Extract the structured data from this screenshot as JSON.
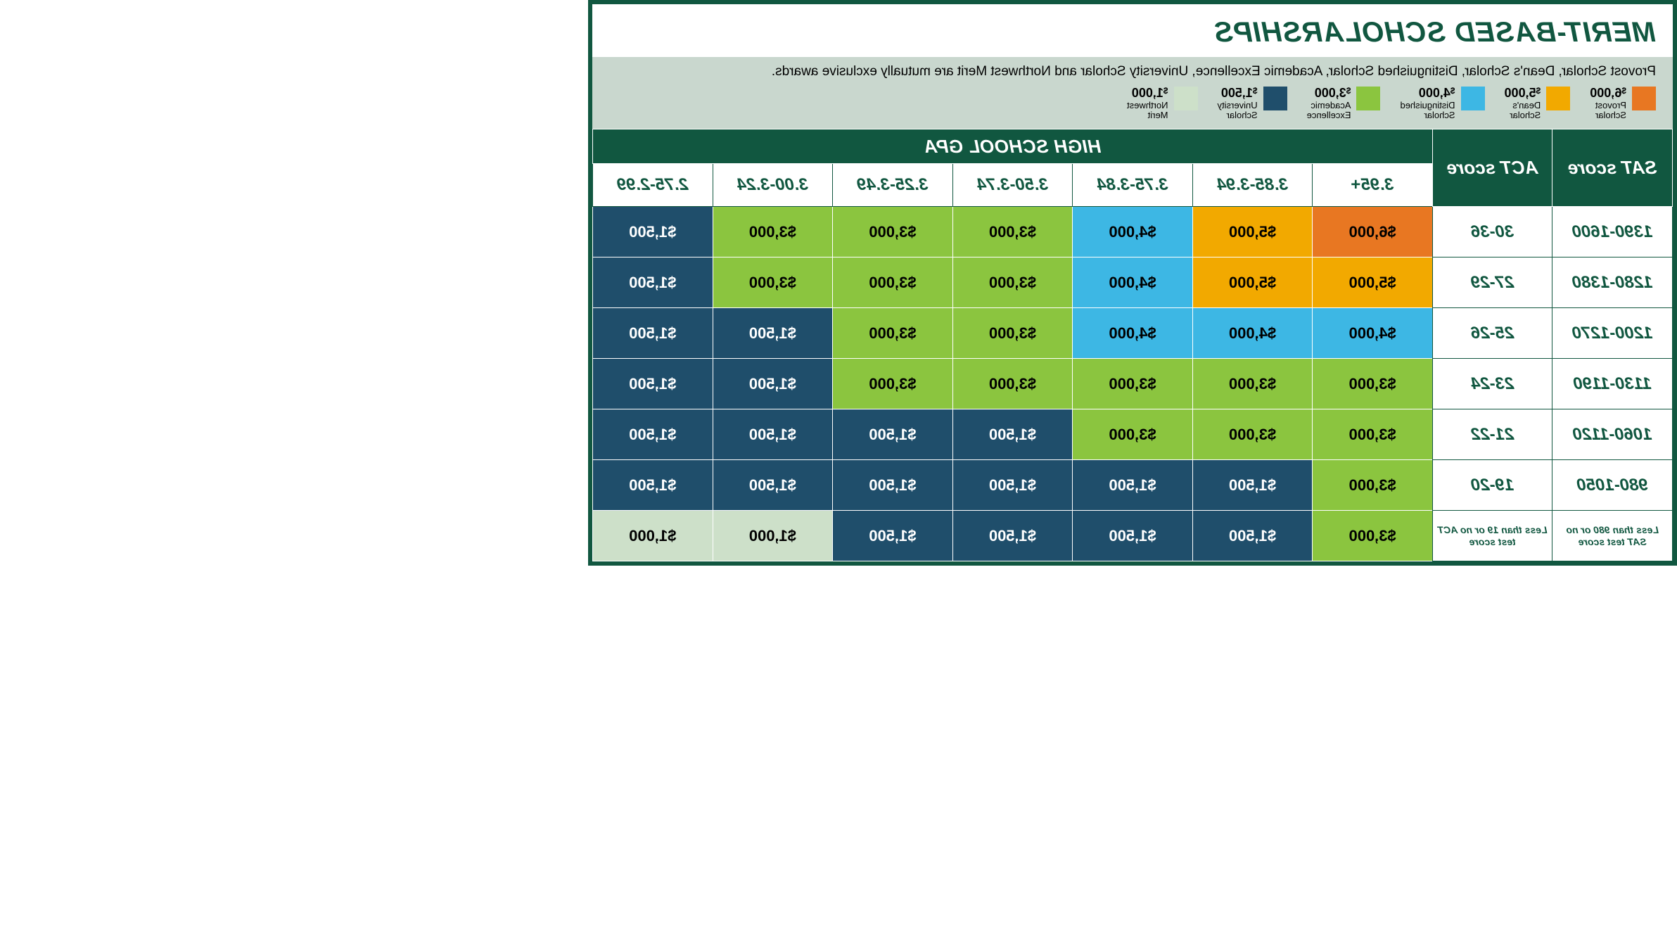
{
  "title": "MERIT-BASED SCHOLARSHIPS",
  "legend_note": "Provost Scholar, Dean's Scholar, Distinguished Scholar, Academic Excellence, University Scholar and Northwest Merit are mutually exclusive awards.",
  "colors": {
    "provost": "#e87722",
    "deans": "#f2a900",
    "distinguished": "#3db7e4",
    "academic": "#8bc53f",
    "university": "#1f4e6b",
    "northwest": "#cde0c9",
    "header_dark": "#115740",
    "white": "#ffffff",
    "text_dark_on_light": "#000000",
    "text_light_on_dark": "#ffffff"
  },
  "legend": [
    {
      "amount": "6,000",
      "name1": "Provost",
      "name2": "Scholar",
      "color_key": "provost"
    },
    {
      "amount": "5,000",
      "name1": "Dean's",
      "name2": "Scholar",
      "color_key": "deans"
    },
    {
      "amount": "4,000",
      "name1": "Distinguished",
      "name2": "Scholar",
      "color_key": "distinguished"
    },
    {
      "amount": "3,000",
      "name1": "Academic",
      "name2": "Excellence",
      "color_key": "academic"
    },
    {
      "amount": "1,500",
      "name1": "University",
      "name2": "Scholar",
      "color_key": "university"
    },
    {
      "amount": "1,000",
      "name1": "Northwest",
      "name2": "Merit",
      "color_key": "northwest"
    }
  ],
  "headers": {
    "sat": "SAT score",
    "act": "ACT score",
    "gpa_title": "HIGH SCHOOL GPA",
    "gpa_cols": [
      "3.95+",
      "3.85-3.94",
      "3.75-3.84",
      "3.50-3.74",
      "3.25-3.49",
      "3.00-3.24",
      "2.75-2.99"
    ]
  },
  "rows": [
    {
      "sat": "1390-1600",
      "act": "30-36",
      "small": false,
      "cells": [
        {
          "value": "$6,000",
          "color_key": "provost",
          "text": "dark"
        },
        {
          "value": "$5,000",
          "color_key": "deans",
          "text": "dark"
        },
        {
          "value": "$4,000",
          "color_key": "distinguished",
          "text": "dark"
        },
        {
          "value": "$3,000",
          "color_key": "academic",
          "text": "dark"
        },
        {
          "value": "$3,000",
          "color_key": "academic",
          "text": "dark"
        },
        {
          "value": "$3,000",
          "color_key": "academic",
          "text": "dark"
        },
        {
          "value": "$1,500",
          "color_key": "university",
          "text": "light"
        }
      ]
    },
    {
      "sat": "1280-1380",
      "act": "27-29",
      "small": false,
      "cells": [
        {
          "value": "$5,000",
          "color_key": "deans",
          "text": "dark"
        },
        {
          "value": "$5,000",
          "color_key": "deans",
          "text": "dark"
        },
        {
          "value": "$4,000",
          "color_key": "distinguished",
          "text": "dark"
        },
        {
          "value": "$3,000",
          "color_key": "academic",
          "text": "dark"
        },
        {
          "value": "$3,000",
          "color_key": "academic",
          "text": "dark"
        },
        {
          "value": "$3,000",
          "color_key": "academic",
          "text": "dark"
        },
        {
          "value": "$1,500",
          "color_key": "university",
          "text": "light"
        }
      ]
    },
    {
      "sat": "1200-1270",
      "act": "25-26",
      "small": false,
      "cells": [
        {
          "value": "$4,000",
          "color_key": "distinguished",
          "text": "dark"
        },
        {
          "value": "$4,000",
          "color_key": "distinguished",
          "text": "dark"
        },
        {
          "value": "$4,000",
          "color_key": "distinguished",
          "text": "dark"
        },
        {
          "value": "$3,000",
          "color_key": "academic",
          "text": "dark"
        },
        {
          "value": "$3,000",
          "color_key": "academic",
          "text": "dark"
        },
        {
          "value": "$1,500",
          "color_key": "university",
          "text": "light"
        },
        {
          "value": "$1,500",
          "color_key": "university",
          "text": "light"
        }
      ]
    },
    {
      "sat": "1130-1190",
      "act": "23-24",
      "small": false,
      "cells": [
        {
          "value": "$3,000",
          "color_key": "academic",
          "text": "dark"
        },
        {
          "value": "$3,000",
          "color_key": "academic",
          "text": "dark"
        },
        {
          "value": "$3,000",
          "color_key": "academic",
          "text": "dark"
        },
        {
          "value": "$3,000",
          "color_key": "academic",
          "text": "dark"
        },
        {
          "value": "$3,000",
          "color_key": "academic",
          "text": "dark"
        },
        {
          "value": "$1,500",
          "color_key": "university",
          "text": "light"
        },
        {
          "value": "$1,500",
          "color_key": "university",
          "text": "light"
        }
      ]
    },
    {
      "sat": "1060-1120",
      "act": "21-22",
      "small": false,
      "cells": [
        {
          "value": "$3,000",
          "color_key": "academic",
          "text": "dark"
        },
        {
          "value": "$3,000",
          "color_key": "academic",
          "text": "dark"
        },
        {
          "value": "$3,000",
          "color_key": "academic",
          "text": "dark"
        },
        {
          "value": "$1,500",
          "color_key": "university",
          "text": "light"
        },
        {
          "value": "$1,500",
          "color_key": "university",
          "text": "light"
        },
        {
          "value": "$1,500",
          "color_key": "university",
          "text": "light"
        },
        {
          "value": "$1,500",
          "color_key": "university",
          "text": "light"
        }
      ]
    },
    {
      "sat": "980-1050",
      "act": "19-20",
      "small": false,
      "cells": [
        {
          "value": "$3,000",
          "color_key": "academic",
          "text": "dark"
        },
        {
          "value": "$1,500",
          "color_key": "university",
          "text": "light"
        },
        {
          "value": "$1,500",
          "color_key": "university",
          "text": "light"
        },
        {
          "value": "$1,500",
          "color_key": "university",
          "text": "light"
        },
        {
          "value": "$1,500",
          "color_key": "university",
          "text": "light"
        },
        {
          "value": "$1,500",
          "color_key": "university",
          "text": "light"
        },
        {
          "value": "$1,500",
          "color_key": "university",
          "text": "light"
        }
      ]
    },
    {
      "sat": "Less than 980 or no SAT test score",
      "act": "Less than 19 or no ACT test score",
      "small": true,
      "cells": [
        {
          "value": "$3,000",
          "color_key": "academic",
          "text": "dark"
        },
        {
          "value": "$1,500",
          "color_key": "university",
          "text": "light"
        },
        {
          "value": "$1,500",
          "color_key": "university",
          "text": "light"
        },
        {
          "value": "$1,500",
          "color_key": "university",
          "text": "light"
        },
        {
          "value": "$1,500",
          "color_key": "university",
          "text": "light"
        },
        {
          "value": "$1,000",
          "color_key": "northwest",
          "text": "dark"
        },
        {
          "value": "$1,000",
          "color_key": "northwest",
          "text": "dark"
        }
      ]
    }
  ]
}
